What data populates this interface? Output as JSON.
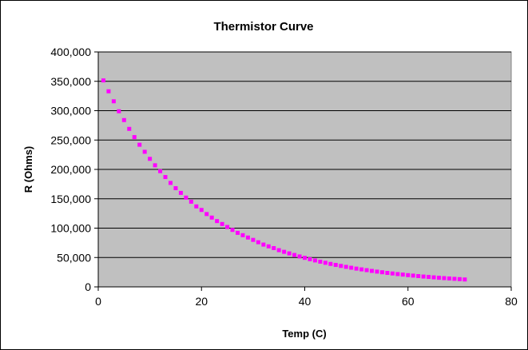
{
  "chart_data": {
    "type": "scatter",
    "title": "Thermistor Curve",
    "xlabel": "Temp (C)",
    "ylabel": "R (Ohms)",
    "xlim": [
      0,
      80
    ],
    "ylim": [
      0,
      400000
    ],
    "x_ticks": [
      0,
      20,
      40,
      60,
      80
    ],
    "x_tick_labels": [
      "0",
      "20",
      "40",
      "60",
      "80"
    ],
    "y_ticks": [
      0,
      50000,
      100000,
      150000,
      200000,
      250000,
      300000,
      350000,
      400000
    ],
    "y_tick_labels": [
      "0",
      "50,000",
      "100,000",
      "150,000",
      "200,000",
      "250,000",
      "300,000",
      "350,000",
      "400,000"
    ],
    "grid": "horizontal",
    "legend": "none",
    "colors": {
      "plot_background": "#c0c0c0",
      "marker": "#ff00ff",
      "gridline": "#000000"
    },
    "series": [
      {
        "marker": "square",
        "x": [
          1,
          2,
          3,
          4,
          5,
          6,
          7,
          8,
          9,
          10,
          11,
          12,
          13,
          14,
          15,
          16,
          17,
          18,
          19,
          20,
          21,
          22,
          23,
          24,
          25,
          26,
          27,
          28,
          29,
          30,
          31,
          32,
          33,
          34,
          35,
          36,
          37,
          38,
          39,
          40,
          41,
          42,
          43,
          44,
          45,
          46,
          47,
          48,
          49,
          50,
          51,
          52,
          53,
          54,
          55,
          56,
          57,
          58,
          59,
          60,
          61,
          62,
          63,
          64,
          65,
          66,
          67,
          68,
          69,
          70,
          71
        ],
        "y": [
          351500,
          333000,
          316000,
          299000,
          284000,
          269000,
          255000,
          242000,
          230000,
          218000,
          207000,
          197000,
          187000,
          177000,
          168000,
          160000,
          152000,
          145000,
          137000,
          131000,
          124000,
          118000,
          112000,
          107000,
          102000,
          97000,
          92000,
          88000,
          84000,
          80000,
          76000,
          72000,
          69000,
          66000,
          62500,
          59700,
          57000,
          54300,
          51800,
          49400,
          47100,
          45000,
          42900,
          41000,
          39100,
          37400,
          35700,
          34100,
          32600,
          31100,
          29800,
          28500,
          27200,
          26000,
          24900,
          23800,
          22800,
          21800,
          20900,
          20000,
          19200,
          18400,
          17600,
          16900,
          16200,
          15500,
          14900,
          14300,
          13700,
          13200,
          12600
        ]
      }
    ]
  }
}
